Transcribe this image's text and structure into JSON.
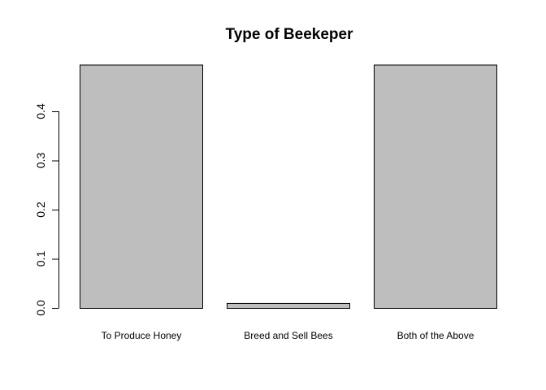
{
  "chart_data": {
    "type": "bar",
    "title": "Type of Beekeper",
    "xlabel": "",
    "ylabel": "",
    "categories": [
      "To Produce Honey",
      "Breed and Sell Bees",
      "Both of the Above"
    ],
    "values": [
      0.495,
      0.01,
      0.495
    ],
    "ylim": [
      0,
      0.5
    ],
    "yticks": [
      0.0,
      0.1,
      0.2,
      0.3,
      0.4
    ],
    "ytick_labels": [
      "0.0",
      "0.1",
      "0.2",
      "0.3",
      "0.4"
    ],
    "bar_color": "#bebebe",
    "edge_color": "#000000",
    "grid": false,
    "legend": "none"
  }
}
